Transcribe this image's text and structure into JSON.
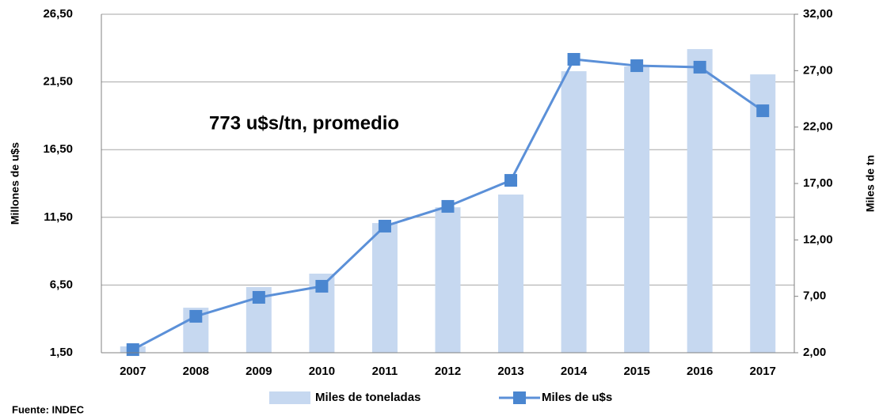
{
  "chart_data": {
    "type": "bar_line",
    "annotation": "773 u$s/tn, promedio",
    "source": "Fuente: INDEC",
    "ylabel": "Millones de u$s",
    "y2label": "Miles de tn",
    "categories": [
      "2007",
      "2008",
      "2009",
      "2010",
      "2011",
      "2012",
      "2013",
      "2014",
      "2015",
      "2016",
      "2017"
    ],
    "series": [
      {
        "name": "Miles de toneladas",
        "type": "bar",
        "axis": "y2",
        "color": "#c6d8f0",
        "values": [
          2.56,
          5.99,
          7.82,
          9.01,
          13.49,
          14.89,
          16.02,
          26.95,
          27.37,
          28.91,
          26.67
        ]
      },
      {
        "name": "Miles de u$s",
        "type": "line",
        "axis": "y",
        "color": "#5b90d8",
        "values": [
          1.73,
          4.19,
          5.59,
          6.41,
          10.85,
          12.31,
          14.23,
          23.17,
          22.7,
          22.59,
          19.37
        ]
      }
    ],
    "ylim": [
      1.5,
      26.5
    ],
    "yticks": [
      {
        "value": 1.5,
        "label": "1,50"
      },
      {
        "value": 6.5,
        "label": "6,50"
      },
      {
        "value": 11.5,
        "label": "11,50"
      },
      {
        "value": 16.5,
        "label": "16,50"
      },
      {
        "value": 21.5,
        "label": "21,50"
      },
      {
        "value": 26.5,
        "label": "26,50"
      }
    ],
    "y2lim": [
      2,
      32
    ],
    "y2ticks": [
      {
        "value": 2,
        "label": "2,00"
      },
      {
        "value": 7,
        "label": "7,00"
      },
      {
        "value": 12,
        "label": "12,00"
      },
      {
        "value": 17,
        "label": "17,00"
      },
      {
        "value": 22,
        "label": "22,00"
      },
      {
        "value": 27,
        "label": "27,00"
      },
      {
        "value": 32,
        "label": "32,00"
      }
    ],
    "grid": true,
    "legend": "bottom"
  }
}
